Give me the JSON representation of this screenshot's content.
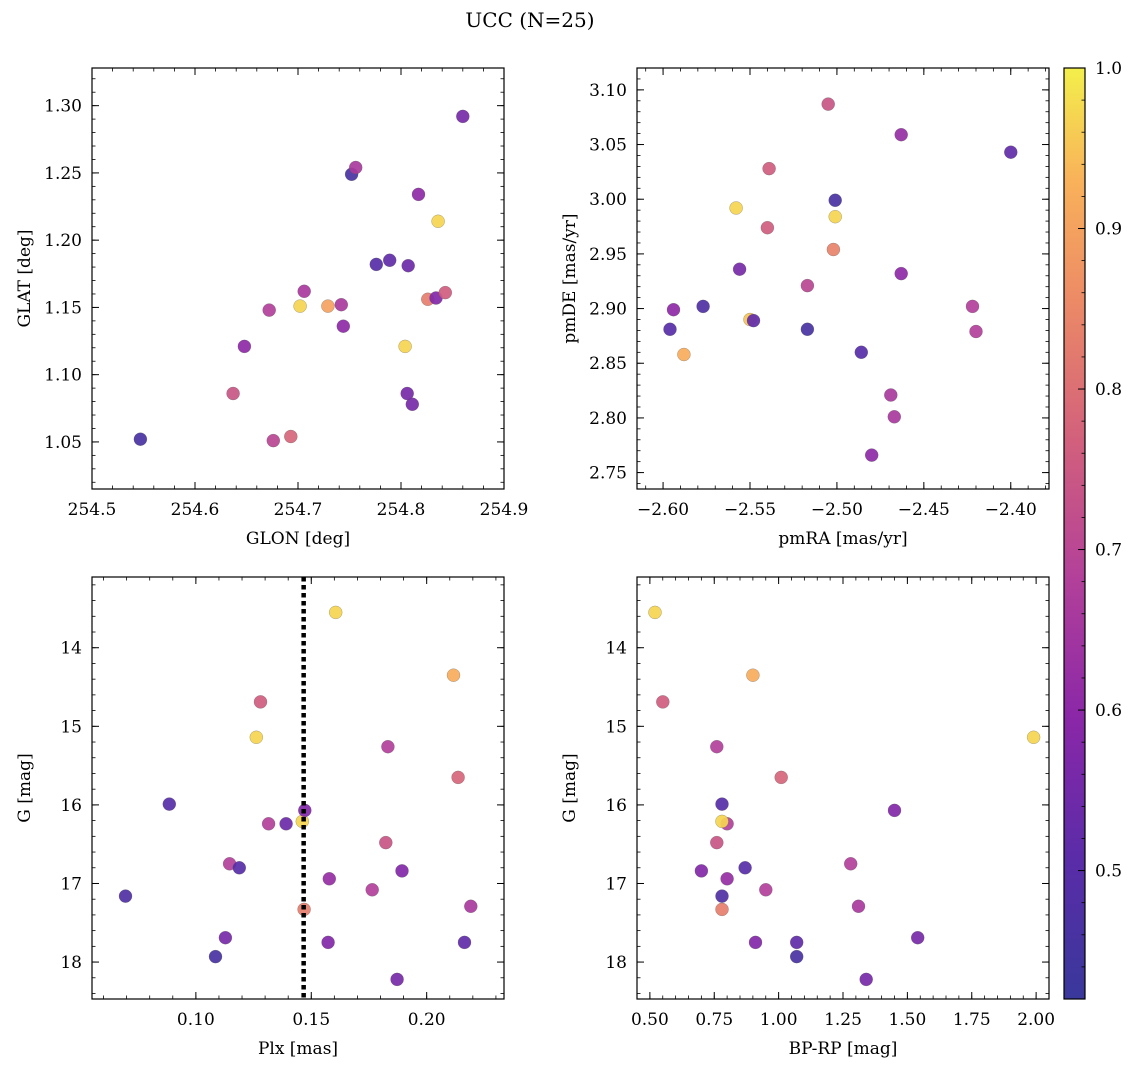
{
  "figure": {
    "title": "UCC (N=25)"
  },
  "colorbar": {
    "min": 0.42,
    "max": 1.0,
    "ticks": [
      0.5,
      0.6,
      0.7,
      0.8,
      0.9,
      1.0
    ],
    "tick_labels": [
      "0.5",
      "0.6",
      "0.7",
      "0.8",
      "0.9",
      "1.0"
    ],
    "colormap": "plasma"
  },
  "chart_data": [
    {
      "type": "scatter",
      "title": "",
      "xlabel": "GLON [deg]",
      "ylabel": "GLAT [deg]",
      "xlim": [
        254.5,
        254.9
      ],
      "ylim": [
        1.015,
        1.328
      ],
      "y_inverted": false,
      "xticks": [
        254.5,
        254.6,
        254.7,
        254.8,
        254.9
      ],
      "xtick_labels": [
        "254.5",
        "254.6",
        "254.7",
        "254.8",
        "254.9"
      ],
      "yticks": [
        1.05,
        1.1,
        1.15,
        1.2,
        1.25,
        1.3
      ],
      "ytick_labels": [
        "1.05",
        "1.10",
        "1.15",
        "1.20",
        "1.25",
        "1.30"
      ],
      "points": [
        {
          "x": 254.547,
          "y": 1.052,
          "c": 0.46
        },
        {
          "x": 254.637,
          "y": 1.086,
          "c": 0.74
        },
        {
          "x": 254.648,
          "y": 1.121,
          "c": 0.6
        },
        {
          "x": 254.672,
          "y": 1.148,
          "c": 0.68
        },
        {
          "x": 254.676,
          "y": 1.051,
          "c": 0.7
        },
        {
          "x": 254.693,
          "y": 1.054,
          "c": 0.78
        },
        {
          "x": 254.702,
          "y": 1.151,
          "c": 0.97
        },
        {
          "x": 254.706,
          "y": 1.162,
          "c": 0.66
        },
        {
          "x": 254.729,
          "y": 1.151,
          "c": 0.9
        },
        {
          "x": 254.742,
          "y": 1.152,
          "c": 0.66
        },
        {
          "x": 254.744,
          "y": 1.136,
          "c": 0.6
        },
        {
          "x": 254.752,
          "y": 1.249,
          "c": 0.46
        },
        {
          "x": 254.756,
          "y": 1.254,
          "c": 0.66
        },
        {
          "x": 254.776,
          "y": 1.182,
          "c": 0.5
        },
        {
          "x": 254.789,
          "y": 1.185,
          "c": 0.52
        },
        {
          "x": 254.804,
          "y": 1.121,
          "c": 0.97
        },
        {
          "x": 254.806,
          "y": 1.086,
          "c": 0.56
        },
        {
          "x": 254.807,
          "y": 1.181,
          "c": 0.54
        },
        {
          "x": 254.811,
          "y": 1.078,
          "c": 0.56
        },
        {
          "x": 254.817,
          "y": 1.234,
          "c": 0.6
        },
        {
          "x": 254.826,
          "y": 1.156,
          "c": 0.83
        },
        {
          "x": 254.834,
          "y": 1.157,
          "c": 0.58
        },
        {
          "x": 254.836,
          "y": 1.214,
          "c": 0.97
        },
        {
          "x": 254.843,
          "y": 1.161,
          "c": 0.76
        },
        {
          "x": 254.86,
          "y": 1.292,
          "c": 0.56
        }
      ]
    },
    {
      "type": "scatter",
      "title": "",
      "xlabel": "pmRA [mas/yr]",
      "ylabel": "pmDE [mas/yr]",
      "xlim": [
        -2.615,
        -2.378
      ],
      "ylim": [
        2.735,
        3.12
      ],
      "y_inverted": false,
      "xticks": [
        -2.6,
        -2.55,
        -2.5,
        -2.45,
        -2.4
      ],
      "xtick_labels": [
        "−2.60",
        "−2.55",
        "−2.50",
        "−2.45",
        "−2.40"
      ],
      "yticks": [
        2.75,
        2.8,
        2.85,
        2.9,
        2.95,
        3.0,
        3.05,
        3.1
      ],
      "ytick_labels": [
        "2.75",
        "2.80",
        "2.85",
        "2.90",
        "2.95",
        "3.00",
        "3.05",
        "3.10"
      ],
      "points": [
        {
          "x": -2.596,
          "y": 2.881,
          "c": 0.5
        },
        {
          "x": -2.594,
          "y": 2.899,
          "c": 0.6
        },
        {
          "x": -2.588,
          "y": 2.858,
          "c": 0.92
        },
        {
          "x": -2.577,
          "y": 2.902,
          "c": 0.48
        },
        {
          "x": -2.558,
          "y": 2.992,
          "c": 0.97
        },
        {
          "x": -2.556,
          "y": 2.936,
          "c": 0.56
        },
        {
          "x": -2.55,
          "y": 2.89,
          "c": 0.95
        },
        {
          "x": -2.548,
          "y": 2.889,
          "c": 0.52
        },
        {
          "x": -2.54,
          "y": 2.974,
          "c": 0.76
        },
        {
          "x": -2.539,
          "y": 3.028,
          "c": 0.76
        },
        {
          "x": -2.517,
          "y": 2.881,
          "c": 0.46
        },
        {
          "x": -2.517,
          "y": 2.921,
          "c": 0.7
        },
        {
          "x": -2.505,
          "y": 3.087,
          "c": 0.74
        },
        {
          "x": -2.502,
          "y": 2.954,
          "c": 0.84
        },
        {
          "x": -2.501,
          "y": 2.999,
          "c": 0.46
        },
        {
          "x": -2.501,
          "y": 2.984,
          "c": 0.97
        },
        {
          "x": -2.48,
          "y": 2.766,
          "c": 0.6
        },
        {
          "x": -2.486,
          "y": 2.86,
          "c": 0.5
        },
        {
          "x": -2.469,
          "y": 2.821,
          "c": 0.66
        },
        {
          "x": -2.467,
          "y": 2.801,
          "c": 0.66
        },
        {
          "x": -2.463,
          "y": 3.059,
          "c": 0.62
        },
        {
          "x": -2.463,
          "y": 2.932,
          "c": 0.6
        },
        {
          "x": -2.422,
          "y": 2.902,
          "c": 0.68
        },
        {
          "x": -2.42,
          "y": 2.879,
          "c": 0.68
        },
        {
          "x": -2.4,
          "y": 3.043,
          "c": 0.52
        }
      ]
    },
    {
      "type": "scatter",
      "title": "",
      "xlabel": "Plx [mas]",
      "ylabel": "G [mag]",
      "xlim": [
        0.055,
        0.2335
      ],
      "ylim": [
        13.1,
        18.47
      ],
      "y_inverted": true,
      "xticks": [
        0.1,
        0.15,
        0.2
      ],
      "xtick_labels": [
        "0.10",
        "0.15",
        "0.20"
      ],
      "yticks": [
        14,
        15,
        16,
        17,
        18
      ],
      "ytick_labels": [
        "14",
        "15",
        "16",
        "17",
        "18"
      ],
      "vline": {
        "x": 0.1467,
        "style": "dotted"
      },
      "points": [
        {
          "x": 0.0695,
          "y": 17.16,
          "c": 0.48
        },
        {
          "x": 0.0885,
          "y": 15.99,
          "c": 0.5
        },
        {
          "x": 0.1085,
          "y": 17.93,
          "c": 0.46
        },
        {
          "x": 0.1128,
          "y": 17.69,
          "c": 0.56
        },
        {
          "x": 0.1146,
          "y": 16.75,
          "c": 0.68
        },
        {
          "x": 0.1188,
          "y": 16.8,
          "c": 0.5
        },
        {
          "x": 0.1262,
          "y": 15.14,
          "c": 0.97
        },
        {
          "x": 0.128,
          "y": 14.69,
          "c": 0.76
        },
        {
          "x": 0.1315,
          "y": 16.24,
          "c": 0.68
        },
        {
          "x": 0.1391,
          "y": 16.24,
          "c": 0.54
        },
        {
          "x": 0.1461,
          "y": 16.21,
          "c": 0.97
        },
        {
          "x": 0.1469,
          "y": 17.33,
          "c": 0.83
        },
        {
          "x": 0.1472,
          "y": 16.07,
          "c": 0.58
        },
        {
          "x": 0.1573,
          "y": 17.75,
          "c": 0.58
        },
        {
          "x": 0.1578,
          "y": 16.94,
          "c": 0.62
        },
        {
          "x": 0.1606,
          "y": 13.55,
          "c": 0.97
        },
        {
          "x": 0.1764,
          "y": 17.08,
          "c": 0.68
        },
        {
          "x": 0.1823,
          "y": 16.48,
          "c": 0.74
        },
        {
          "x": 0.1832,
          "y": 15.26,
          "c": 0.68
        },
        {
          "x": 0.1872,
          "y": 18.22,
          "c": 0.56
        },
        {
          "x": 0.1893,
          "y": 16.84,
          "c": 0.58
        },
        {
          "x": 0.2116,
          "y": 14.35,
          "c": 0.92
        },
        {
          "x": 0.2136,
          "y": 15.65,
          "c": 0.78
        },
        {
          "x": 0.2164,
          "y": 17.75,
          "c": 0.52
        },
        {
          "x": 0.2191,
          "y": 17.29,
          "c": 0.66
        }
      ]
    },
    {
      "type": "scatter",
      "title": "",
      "xlabel": "BP-RP [mag]",
      "ylabel": "G [mag]",
      "xlim": [
        0.45,
        2.05
      ],
      "ylim": [
        13.1,
        18.47
      ],
      "y_inverted": true,
      "xticks": [
        0.5,
        0.75,
        1.0,
        1.25,
        1.5,
        1.75,
        2.0
      ],
      "xtick_labels": [
        "0.50",
        "0.75",
        "1.00",
        "1.25",
        "1.50",
        "1.75",
        "2.00"
      ],
      "yticks": [
        14,
        15,
        16,
        17,
        18
      ],
      "ytick_labels": [
        "14",
        "15",
        "16",
        "17",
        "18"
      ],
      "points": [
        {
          "x": 0.52,
          "y": 13.55,
          "c": 0.97
        },
        {
          "x": 0.55,
          "y": 14.69,
          "c": 0.76
        },
        {
          "x": 0.7,
          "y": 16.84,
          "c": 0.58
        },
        {
          "x": 0.76,
          "y": 16.48,
          "c": 0.74
        },
        {
          "x": 0.76,
          "y": 15.26,
          "c": 0.68
        },
        {
          "x": 0.78,
          "y": 15.99,
          "c": 0.5
        },
        {
          "x": 0.78,
          "y": 17.16,
          "c": 0.48
        },
        {
          "x": 0.78,
          "y": 17.33,
          "c": 0.83
        },
        {
          "x": 0.8,
          "y": 16.24,
          "c": 0.68
        },
        {
          "x": 0.78,
          "y": 16.21,
          "c": 0.97
        },
        {
          "x": 0.8,
          "y": 16.94,
          "c": 0.62
        },
        {
          "x": 0.87,
          "y": 16.8,
          "c": 0.5
        },
        {
          "x": 0.9,
          "y": 14.35,
          "c": 0.92
        },
        {
          "x": 0.91,
          "y": 17.75,
          "c": 0.58
        },
        {
          "x": 0.95,
          "y": 17.08,
          "c": 0.68
        },
        {
          "x": 1.01,
          "y": 15.65,
          "c": 0.78
        },
        {
          "x": 1.07,
          "y": 17.75,
          "c": 0.52
        },
        {
          "x": 1.07,
          "y": 17.93,
          "c": 0.46
        },
        {
          "x": 1.28,
          "y": 16.75,
          "c": 0.68
        },
        {
          "x": 1.31,
          "y": 17.29,
          "c": 0.66
        },
        {
          "x": 1.34,
          "y": 18.22,
          "c": 0.56
        },
        {
          "x": 1.45,
          "y": 16.07,
          "c": 0.58
        },
        {
          "x": 1.54,
          "y": 17.69,
          "c": 0.56
        },
        {
          "x": 1.99,
          "y": 15.14,
          "c": 0.97
        }
      ]
    }
  ]
}
